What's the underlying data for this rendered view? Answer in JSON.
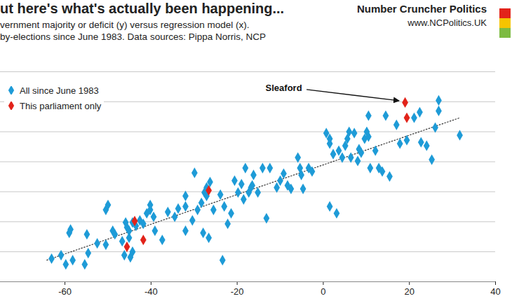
{
  "title": "ut here's what's actually been happening...",
  "subtitle": [
    "vernment majority or deficit (y) versus regression model (x).",
    "by-elections since June 1983. Data sources: Pippa Norris, NCP"
  ],
  "brand": "Number Cruncher Politics",
  "brand_url": "www.NCPolitics.UK",
  "chart_data": {
    "type": "scatter",
    "xlim": [
      -75,
      40
    ],
    "xticks": [
      -60,
      -40,
      -20,
      0,
      20,
      40
    ],
    "ylim": [
      -80,
      60
    ],
    "yticks": [
      -80,
      -60,
      -40,
      -20,
      0,
      20,
      40,
      60
    ],
    "grid": true,
    "tick_labels": "x",
    "legend": "top-left",
    "series": [
      {
        "name": "All since June 1983",
        "color": "#1e9bd7",
        "marker": "diamond",
        "x": [
          -63.1,
          -60.9,
          -59.8,
          -58.2,
          -59.0,
          -58.7,
          -54.9,
          -54.6,
          -55.4,
          -52.5,
          -50.5,
          -50.5,
          -50.0,
          -48.9,
          -48.4,
          -46.7,
          -46.2,
          -45.9,
          -45.6,
          -45.1,
          -45.1,
          -44.8,
          -44.3,
          -44.3,
          -43.5,
          -42.6,
          -41.8,
          -41.0,
          -40.2,
          -40.2,
          -39.4,
          -39.1,
          -37.4,
          -36.1,
          -34.5,
          -33.7,
          -32.0,
          -32.0,
          -32.0,
          -30.4,
          -29.9,
          -29.2,
          -28.3,
          -27.6,
          -27.9,
          -27.1,
          -27.1,
          -26.6,
          -26.3,
          -25.5,
          -23.9,
          -23.4,
          -23.0,
          -22.2,
          -21.4,
          -20.6,
          -19.8,
          -19.0,
          -18.5,
          -18.1,
          -17.3,
          -16.8,
          -16.5,
          -16.2,
          -15.2,
          -14.1,
          -13.2,
          -12.4,
          -10.8,
          -10.0,
          -9.2,
          -8.3,
          -7.5,
          -5.9,
          -5.4,
          -5.1,
          -4.7,
          -3.4,
          -2.6,
          0.7,
          1.5,
          1.5,
          1.5,
          2.3,
          3.1,
          3.6,
          4.4,
          5.1,
          5.6,
          6.0,
          6.4,
          7.2,
          8.0,
          8.3,
          8.8,
          9.6,
          10.1,
          10.5,
          10.5,
          10.9,
          12.1,
          12.9,
          13.7,
          14.5,
          15.4,
          17.0,
          17.8,
          19.4,
          21.1,
          22.4,
          22.7,
          24.0,
          25.2,
          26.0,
          26.8,
          26.8,
          31.7
        ],
        "y": [
          -64.6,
          -62.3,
          -68.4,
          -65.6,
          -47.4,
          -45.1,
          -48.4,
          -60.9,
          -68.4,
          -54.4,
          -55.3,
          -32.1,
          -28.8,
          -46.0,
          -48.4,
          -53.0,
          -62.3,
          -40.5,
          -43.7,
          -50.7,
          -46.0,
          -63.7,
          -60.0,
          -40.5,
          -42.8,
          -39.1,
          -41.4,
          -34.4,
          -32.1,
          -28.8,
          -36.7,
          -46.0,
          -52.1,
          -33.5,
          -36.7,
          -31.2,
          -29.8,
          -22.8,
          -46.0,
          -39.1,
          -7.4,
          -32.1,
          -27.4,
          -20.5,
          -47.4,
          -17.2,
          -22.8,
          -50.7,
          -13.5,
          -32.1,
          -21.9,
          -65.6,
          -29.8,
          -41.4,
          -34.4,
          -12.6,
          -20.5,
          -14.9,
          -25.1,
          -4.2,
          -20.5,
          -17.2,
          -15.8,
          -8.8,
          -20.5,
          -4.2,
          -37.7,
          -4.2,
          -17.2,
          -12.6,
          -7.9,
          -15.8,
          -18.1,
          2.8,
          -4.2,
          -8.8,
          -18.1,
          -4.2,
          -6.5,
          19.1,
          15.3,
          -29.8,
          12.1,
          5.1,
          -34.4,
          7.4,
          2.8,
          10.7,
          15.3,
          20.0,
          2.8,
          19.1,
          0.5,
          8.4,
          6.0,
          15.3,
          20.0,
          16.7,
          30.7,
          -4.2,
          7.4,
          -4.2,
          -6.5,
          30.7,
          -9.8,
          24.6,
          12.1,
          14.4,
          29.3,
          33.0,
          13.0,
          10.7,
          1.4,
          22.8,
          40.9,
          33.9,
          17.7
        ]
      },
      {
        "name": "This parliament only",
        "color": "#e2231a",
        "marker": "diamond",
        "x": [
          19.0,
          19.4,
          -26.6,
          -43.8,
          -41.8,
          -45.6
        ],
        "y": [
          39.5,
          29.3,
          -19.1,
          -39.5,
          -52.1,
          -56.7
        ]
      }
    ],
    "trendline": {
      "x": [
        -64.2,
        31.7
      ],
      "y": [
        -65.6,
        29.3
      ],
      "line_style": "dotted"
    },
    "annotations": [
      {
        "text": "Sleaford",
        "point": [
          19.0,
          39.5
        ]
      }
    ]
  }
}
